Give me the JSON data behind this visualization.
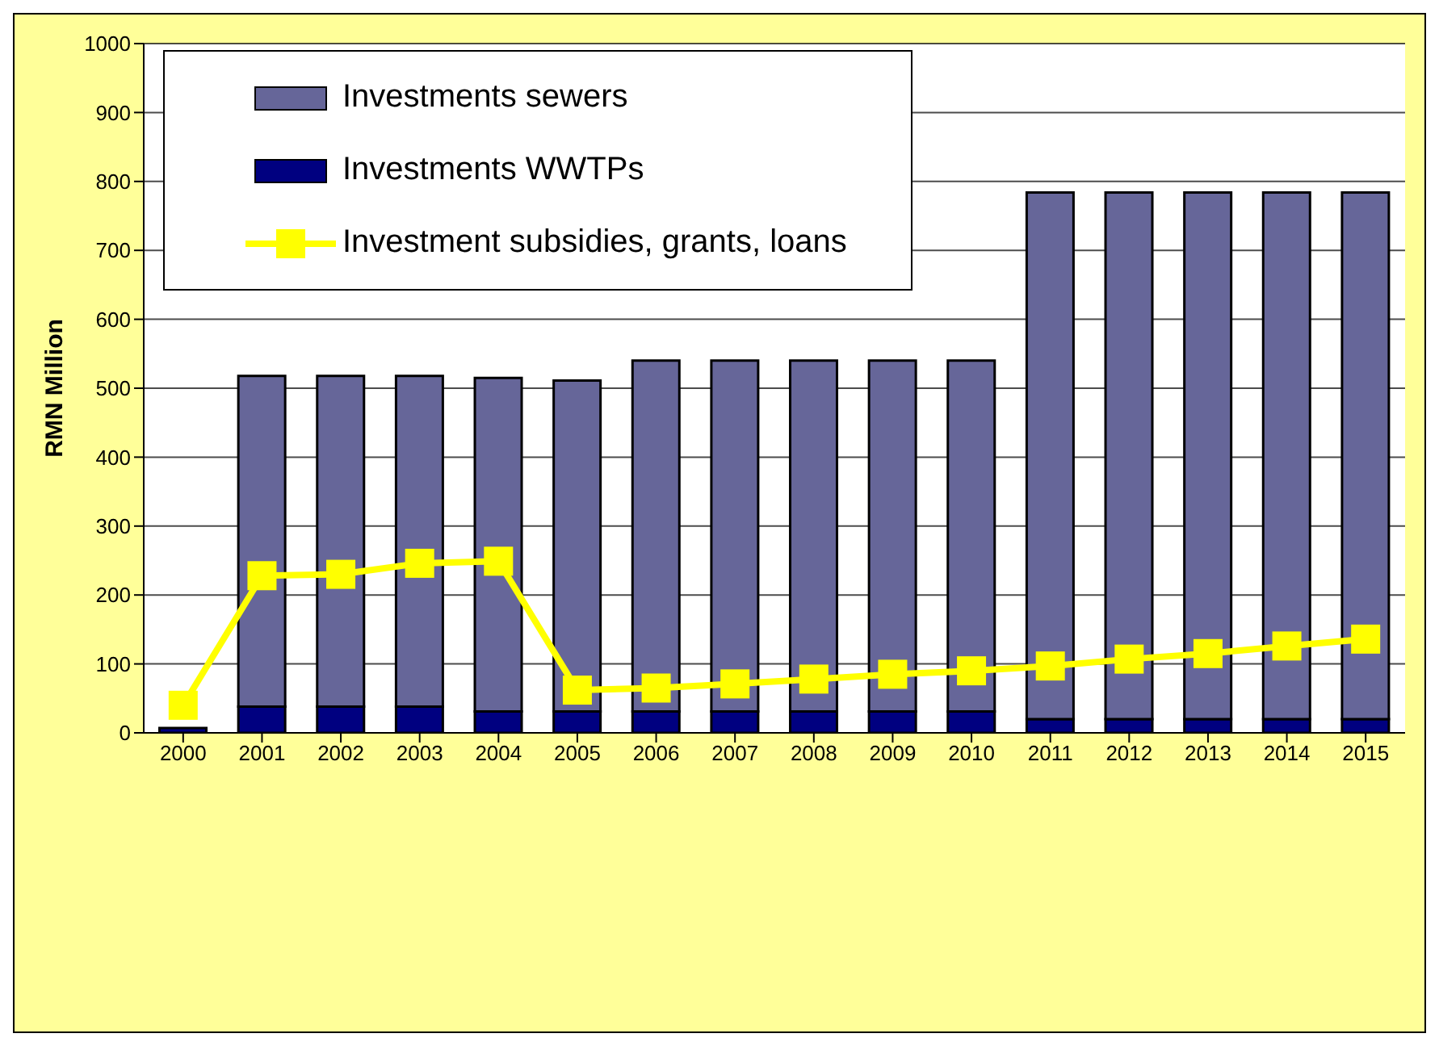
{
  "chart_data": {
    "type": "bar",
    "stacked": true,
    "ylabel": "RMN Million",
    "categories": [
      "2000",
      "2001",
      "2002",
      "2003",
      "2004",
      "2005",
      "2006",
      "2007",
      "2008",
      "2009",
      "2010",
      "2011",
      "2012",
      "2013",
      "2014",
      "2015"
    ],
    "series": [
      {
        "name": "Investments WWTPs",
        "color": "#000080",
        "values": [
          7,
          38,
          38,
          38,
          31,
          31,
          31,
          31,
          31,
          31,
          31,
          20,
          20,
          20,
          20,
          20
        ]
      },
      {
        "name": "Investments sewers",
        "color": "#666699",
        "values": [
          null,
          480,
          480,
          480,
          484,
          480,
          509,
          509,
          509,
          509,
          509,
          764,
          764,
          764,
          764,
          764
        ]
      },
      {
        "name": "Investment subsidies, grants, loans",
        "type": "line",
        "color": "#ffff00",
        "marker": "square",
        "values": [
          40,
          228,
          230,
          246,
          249,
          62,
          65,
          71,
          78,
          85,
          90,
          97,
          107,
          115,
          126,
          136
        ]
      }
    ],
    "ylim": [
      0,
      1000
    ],
    "yticks": [
      0,
      100,
      200,
      300,
      400,
      500,
      600,
      700,
      800,
      900,
      1000
    ],
    "grid": "y",
    "legend": "top left"
  }
}
